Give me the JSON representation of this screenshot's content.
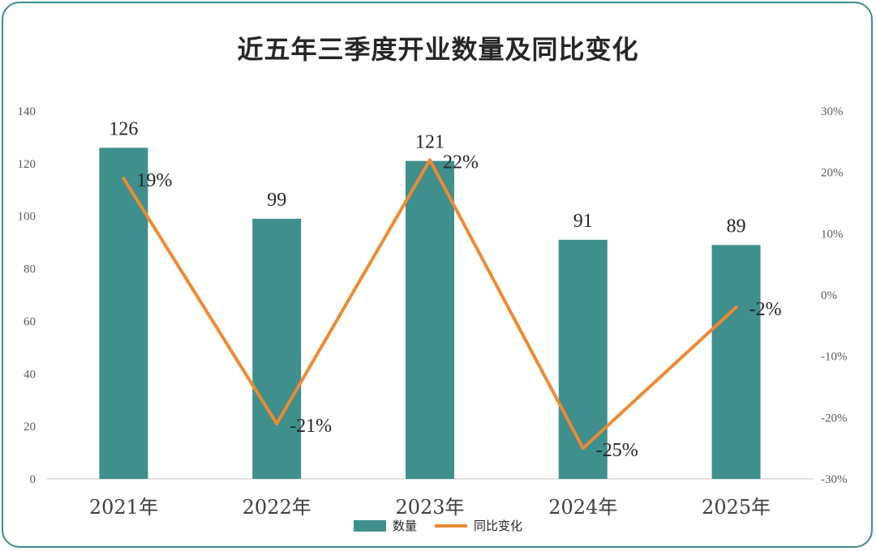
{
  "chart_data": {
    "type": "bar",
    "title": "近五年三季度开业数量及同比变化",
    "categories": [
      "2021年",
      "2022年",
      "2023年",
      "2024年",
      "2025年"
    ],
    "series": [
      {
        "name": "数量",
        "kind": "bar",
        "axis": "left",
        "values": [
          126,
          99,
          121,
          91,
          89
        ],
        "labels": [
          "126",
          "99",
          "121",
          "91",
          "89"
        ]
      },
      {
        "name": "同比变化",
        "kind": "line",
        "axis": "right",
        "values": [
          19,
          -21,
          22,
          -25,
          -2
        ],
        "labels": [
          "19%",
          "-21%",
          "22%",
          "-25%",
          "-2%"
        ]
      }
    ],
    "y_left": {
      "min": 0,
      "max": 140,
      "ticks": [
        "0",
        "20",
        "40",
        "60",
        "80",
        "100",
        "120",
        "140"
      ]
    },
    "y_right": {
      "min": -30,
      "max": 30,
      "ticks": [
        "-30%",
        "-20%",
        "-10%",
        "0%",
        "10%",
        "20%",
        "30%"
      ]
    },
    "grid": false,
    "legend_position": "bottom",
    "colors": {
      "bar": "#3f8f8c",
      "line": "#ee8a32",
      "frame": "#3d8b8b"
    }
  }
}
